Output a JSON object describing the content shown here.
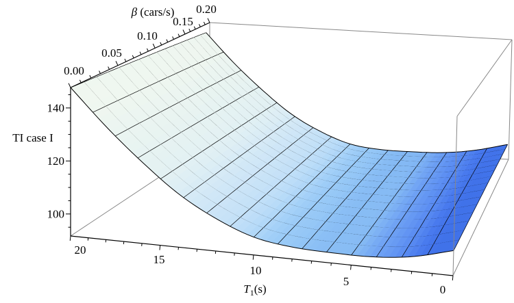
{
  "page": {
    "background": "#ffffff"
  },
  "chart_data": {
    "type": "surface3d",
    "title": "",
    "x_axis": {
      "label": "T1(s)",
      "label_symbol": "T",
      "label_sub": "1",
      "label_unit": "(s)",
      "ticks": [
        "20",
        "15",
        "10",
        "5",
        "0"
      ],
      "tick_values": [
        20,
        15,
        10,
        5,
        0
      ],
      "range": [
        0,
        20
      ],
      "minor_step": 1
    },
    "y_axis": {
      "label": "β (cars/s)",
      "label_symbol": "β",
      "label_unit": " (cars/s)",
      "ticks": [
        "0.00",
        "0.05",
        "0.10",
        "0.15",
        "0.20"
      ],
      "tick_values": [
        0.0,
        0.05,
        0.1,
        0.15,
        0.2
      ],
      "range": [
        0,
        0.2
      ],
      "minor_step": 0.01
    },
    "z_axis": {
      "label": "TI case I",
      "ticks": [
        "100",
        "120",
        "140"
      ],
      "tick_values": [
        100,
        120,
        140
      ],
      "range": [
        91.7,
        147.7
      ],
      "minor_step": 5
    },
    "surface": {
      "T1_values": [
        0,
        2,
        4,
        6,
        8,
        10,
        12,
        14,
        16,
        18,
        20
      ],
      "beta_values": [
        0.2,
        0.15,
        0.1,
        0.05,
        0.0
      ],
      "TI_grid": [
        [
          100.5,
          96.9,
          95.4,
          95.4,
          96.0,
          98.2,
          103.6,
          111.3,
          121.9,
          134.0,
          147.7
        ],
        [
          100.4,
          96.8,
          95.2,
          95.1,
          95.6,
          97.7,
          103.0,
          110.6,
          121.1,
          133.1,
          146.7
        ],
        [
          100.3,
          96.7,
          95.0,
          94.8,
          95.2,
          97.2,
          102.4,
          109.9,
          120.3,
          132.2,
          145.7
        ],
        [
          100.1,
          96.6,
          94.8,
          94.5,
          94.8,
          96.7,
          101.8,
          109.2,
          119.5,
          131.3,
          144.7
        ],
        [
          100.0,
          96.5,
          94.6,
          94.2,
          94.4,
          96.2,
          101.2,
          108.5,
          118.7,
          130.4,
          143.7
        ]
      ]
    },
    "mesh": {
      "t_cells": 16,
      "beta_cells": 15
    },
    "legend": null,
    "grid": "box",
    "colors": {
      "background": "#ffffff",
      "mesh_line": "#000000",
      "box_edge": "#878787",
      "axis": "#000000",
      "text": "#000000",
      "surface_scale": [
        [
          -2.2,
          "#3a6ce6"
        ],
        [
          -1.5,
          "#4a7bee"
        ],
        [
          -0.9,
          "#5d8ff2"
        ],
        [
          -0.4,
          "#71a4f4"
        ],
        [
          0.0,
          "#85baf4"
        ],
        [
          0.6,
          "#95c7f6"
        ],
        [
          1.4,
          "#a5d1f8"
        ],
        [
          2.4,
          "#badcf8"
        ],
        [
          3.5,
          "#cde5f7"
        ],
        [
          4.8,
          "#ddeef5"
        ],
        [
          6.0,
          "#e9f4f1"
        ],
        [
          7.0,
          "#f0f7f0"
        ]
      ]
    }
  }
}
